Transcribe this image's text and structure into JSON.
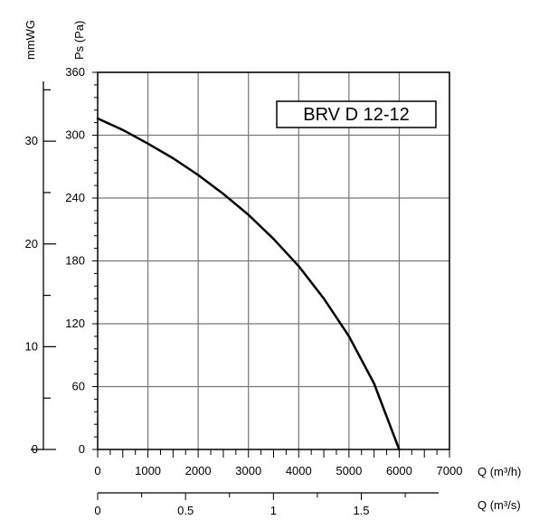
{
  "chart_data": {
    "type": "line",
    "title": "BRV D 12-12",
    "x": [
      0,
      500,
      1000,
      1500,
      2000,
      2500,
      3000,
      3500,
      4000,
      4500,
      5000,
      5500,
      6000
    ],
    "series": [
      {
        "values": [
          316,
          305,
          292,
          278,
          262,
          244,
          224,
          201,
          175,
          144,
          108,
          63,
          0
        ]
      }
    ],
    "axes": {
      "left_primary": {
        "label": "Ps (Pa)",
        "ticks": [
          "0",
          "60",
          "120",
          "180",
          "240",
          "300",
          "360"
        ],
        "range": [
          0,
          360
        ]
      },
      "left_secondary": {
        "label": "mmWG",
        "ticks": [
          "0",
          "10",
          "20",
          "30"
        ],
        "range": [
          0,
          36.7
        ]
      },
      "bottom_primary": {
        "label": "Q (m³/h)",
        "ticks": [
          "0",
          "1000",
          "2000",
          "3000",
          "4000",
          "5000",
          "6000",
          "7000"
        ],
        "range": [
          0,
          7000
        ]
      },
      "bottom_secondary": {
        "label": "Q (m³/s)",
        "ticks": [
          "0",
          "0.5",
          "1",
          "1.5"
        ],
        "range": [
          0,
          1.94
        ]
      }
    },
    "grid": true,
    "colors": {
      "line": "#000000",
      "grid": "#777777",
      "axis": "#000000"
    }
  }
}
